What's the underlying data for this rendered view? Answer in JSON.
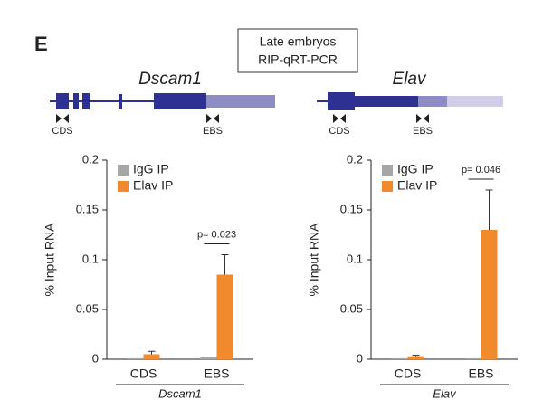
{
  "panel_label": "E",
  "header": {
    "lines": [
      "Late embryos",
      "RIP-qRT-PCR"
    ]
  },
  "gene_diagrams": [
    {
      "name": "Dscam1",
      "labels": [
        "CDS",
        "EBS"
      ]
    },
    {
      "name": "Elav",
      "labels": [
        "CDS",
        "EBS"
      ]
    }
  ],
  "chart_data": [
    {
      "type": "bar",
      "ylabel": "% Input RNA",
      "xlabel": "Dscam1",
      "categories": [
        "CDS",
        "EBS"
      ],
      "series": [
        {
          "name": "IgG IP",
          "color": "#a6a6a6",
          "values": [
            0.001,
            0.002
          ]
        },
        {
          "name": "Elav IP",
          "color": "#f08a2c",
          "values": [
            0.005,
            0.085
          ],
          "errors": [
            0.003,
            0.02
          ]
        }
      ],
      "ylim": [
        0,
        0.2
      ],
      "yticks": [
        0,
        0.05,
        0.1,
        0.15,
        0.2
      ],
      "annotation": "p= 0.023",
      "legend": "upper left"
    },
    {
      "type": "bar",
      "ylabel": "% Input RNA",
      "xlabel": "Elav",
      "categories": [
        "CDS",
        "EBS"
      ],
      "series": [
        {
          "name": "IgG IP",
          "color": "#a6a6a6",
          "values": [
            0.001,
            0.001
          ]
        },
        {
          "name": "Elav IP",
          "color": "#f08a2c",
          "values": [
            0.003,
            0.13
          ],
          "errors": [
            0.001,
            0.04
          ]
        }
      ],
      "ylim": [
        0,
        0.2
      ],
      "yticks": [
        0,
        0.05,
        0.1,
        0.15,
        0.2
      ],
      "annotation": "p= 0.046",
      "legend": "upper left"
    }
  ]
}
